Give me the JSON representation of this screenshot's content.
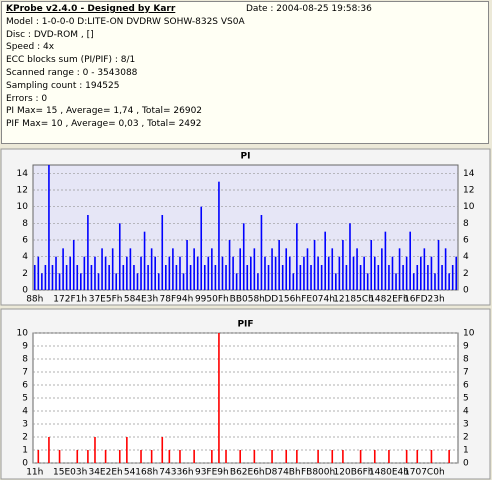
{
  "header": {
    "title": "KProbe v2.4.0 - Designed by Karr",
    "date": "Date : 2004-08-25 19:58:36",
    "lines": [
      "Model : 1-0-0-0 D:LITE-ON DVDRW SOHW-832S  VS0A",
      "Disc : DVD-ROM ,  []",
      "Speed : 4x",
      "ECC blocks sum (PI/PIF) : 8/1",
      "Scanned range : 0 - 3543088",
      "Sampling count : 194525",
      "Errors : 0",
      "PI Max= 15 , Average= 1,74 , Total= 26902",
      "PIF Max= 10 , Average= 0,03 , Total= 2492"
    ]
  },
  "chart_data": [
    {
      "type": "bar",
      "title": "PI",
      "color": "#0000ff",
      "background": "#e6e6f6",
      "grid": true,
      "ylim": [
        0,
        15
      ],
      "yticks": [
        0,
        2,
        4,
        6,
        8,
        10,
        12,
        14
      ],
      "categories": [
        "88h",
        null,
        null,
        null,
        null,
        null,
        null,
        null,
        null,
        null,
        "172F1h",
        null,
        null,
        null,
        null,
        null,
        null,
        null,
        null,
        null,
        "37E5Fh",
        null,
        null,
        null,
        null,
        null,
        null,
        null,
        null,
        null,
        "584E3h",
        null,
        null,
        null,
        null,
        null,
        null,
        null,
        null,
        null,
        "78F94h",
        null,
        null,
        null,
        null,
        null,
        null,
        null,
        null,
        null,
        "9950Fh",
        null,
        null,
        null,
        null,
        null,
        null,
        null,
        null,
        null,
        "BB058h",
        null,
        null,
        null,
        null,
        null,
        null,
        null,
        null,
        null,
        "DD156h",
        null,
        null,
        null,
        null,
        null,
        null,
        null,
        null,
        null,
        "FE074h",
        null,
        null,
        null,
        null,
        null,
        null,
        null,
        null,
        null,
        "12185Ch",
        null,
        null,
        null,
        null,
        null,
        null,
        null,
        null,
        null,
        "1482EFh",
        null,
        null,
        null,
        null,
        null,
        null,
        null,
        null,
        null,
        "16FD23h",
        null,
        null,
        null,
        null,
        null,
        null,
        null,
        null,
        null
      ],
      "values": [
        3,
        4,
        2,
        3,
        15,
        3,
        4,
        2,
        5,
        3,
        4,
        6,
        3,
        2,
        4,
        9,
        3,
        4,
        2,
        5,
        4,
        3,
        5,
        2,
        8,
        3,
        4,
        5,
        3,
        2,
        4,
        7,
        3,
        5,
        4,
        2,
        9,
        3,
        4,
        5,
        3,
        4,
        2,
        6,
        3,
        5,
        4,
        10,
        3,
        4,
        5,
        3,
        13,
        4,
        3,
        6,
        4,
        2,
        5,
        8,
        3,
        4,
        5,
        2,
        9,
        4,
        3,
        5,
        4,
        6,
        3,
        5,
        4,
        2,
        8,
        3,
        4,
        5,
        3,
        6,
        4,
        3,
        7,
        4,
        5,
        2,
        4,
        6,
        3,
        8,
        4,
        5,
        3,
        4,
        2,
        6,
        4,
        3,
        5,
        7,
        3,
        4,
        2,
        5,
        3,
        4,
        7,
        2,
        3,
        4,
        5,
        3,
        4,
        2,
        6,
        3,
        5,
        2,
        3,
        4
      ]
    },
    {
      "type": "bar",
      "title": "PIF",
      "color": "#ff0000",
      "background": "#ffffff",
      "grid": true,
      "ylim": [
        0,
        10
      ],
      "yticks": [
        0,
        1,
        2,
        3,
        4,
        5,
        6,
        7,
        8,
        9,
        10
      ],
      "categories": [
        "11h",
        null,
        null,
        null,
        null,
        null,
        null,
        null,
        null,
        null,
        "15E03h",
        null,
        null,
        null,
        null,
        null,
        null,
        null,
        null,
        null,
        "34E2Eh",
        null,
        null,
        null,
        null,
        null,
        null,
        null,
        null,
        null,
        "54168h",
        null,
        null,
        null,
        null,
        null,
        null,
        null,
        null,
        null,
        "74336h",
        null,
        null,
        null,
        null,
        null,
        null,
        null,
        null,
        null,
        "93FE9h",
        null,
        null,
        null,
        null,
        null,
        null,
        null,
        null,
        null,
        "B62E6h",
        null,
        null,
        null,
        null,
        null,
        null,
        null,
        null,
        null,
        "D874Bh",
        null,
        null,
        null,
        null,
        null,
        null,
        null,
        null,
        null,
        "FB800h",
        null,
        null,
        null,
        null,
        null,
        null,
        null,
        null,
        null,
        "120B6Fh",
        null,
        null,
        null,
        null,
        null,
        null,
        null,
        null,
        null,
        "1480E4h",
        null,
        null,
        null,
        null,
        null,
        null,
        null,
        null,
        null,
        "1707C0h",
        null,
        null,
        null,
        null,
        null,
        null,
        null,
        null,
        null
      ],
      "values": [
        0,
        1,
        0,
        0,
        2,
        0,
        0,
        1,
        0,
        0,
        0,
        0,
        1,
        0,
        0,
        1,
        0,
        2,
        0,
        0,
        1,
        0,
        0,
        0,
        1,
        0,
        2,
        0,
        0,
        0,
        1,
        0,
        0,
        1,
        0,
        0,
        2,
        0,
        1,
        0,
        0,
        1,
        0,
        0,
        0,
        1,
        0,
        0,
        0,
        0,
        1,
        0,
        10,
        0,
        1,
        0,
        0,
        0,
        1,
        0,
        0,
        0,
        1,
        0,
        0,
        0,
        0,
        1,
        0,
        0,
        0,
        1,
        0,
        0,
        1,
        0,
        0,
        0,
        0,
        0,
        1,
        0,
        0,
        0,
        1,
        0,
        0,
        1,
        0,
        0,
        0,
        0,
        1,
        0,
        0,
        0,
        1,
        0,
        0,
        0,
        1,
        0,
        0,
        0,
        0,
        1,
        0,
        0,
        1,
        0,
        0,
        0,
        1,
        0,
        0,
        0,
        0,
        1,
        0,
        0
      ]
    }
  ]
}
